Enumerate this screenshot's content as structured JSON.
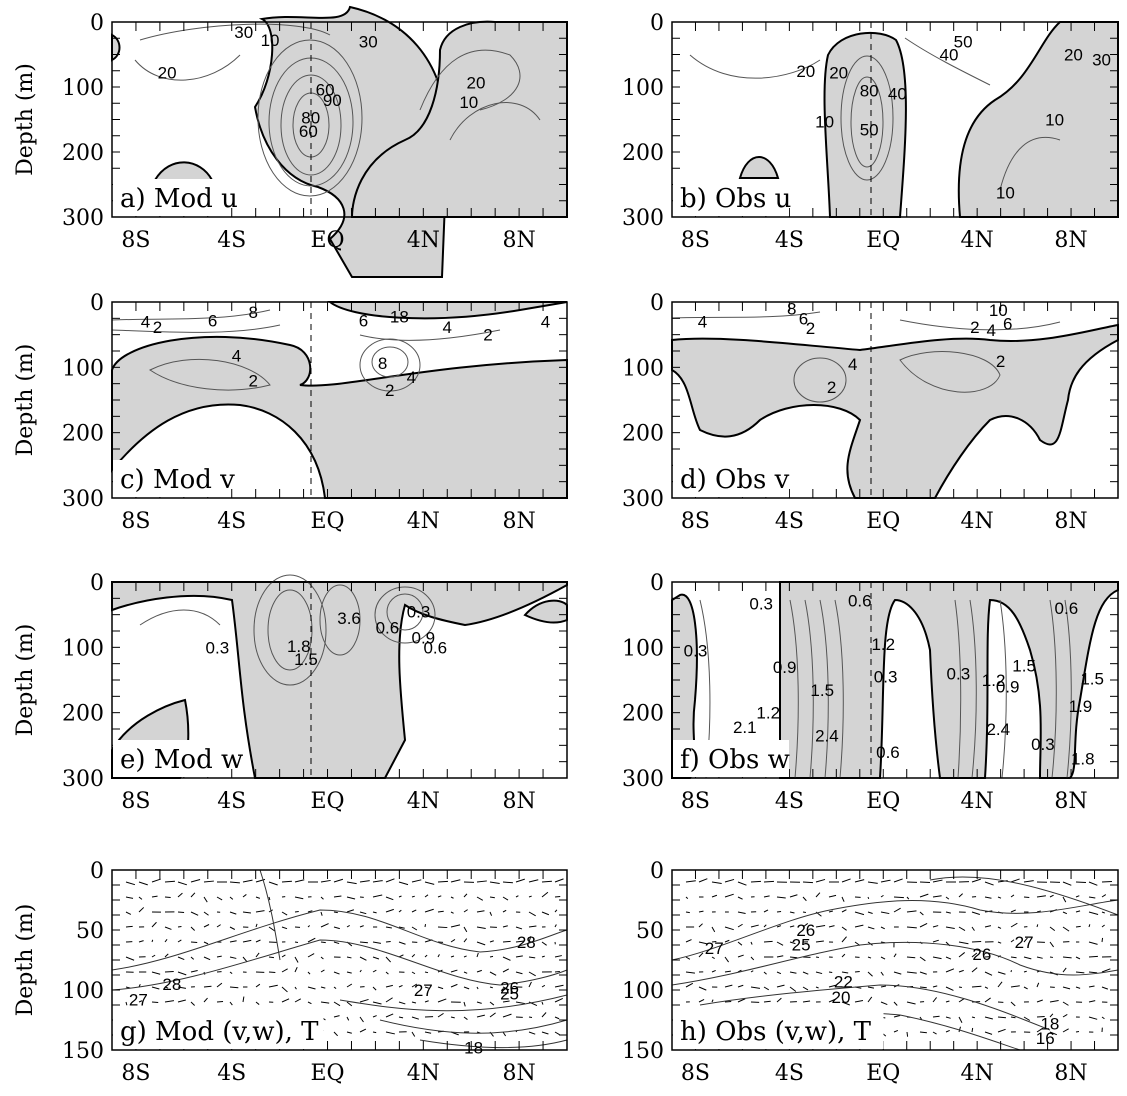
{
  "figure": {
    "y_axis_label": "Depth (m)",
    "x_ticks": [
      "8S",
      "4S",
      "EQ",
      "4N",
      "8N"
    ],
    "x_tick_values": [
      -8,
      -4,
      0,
      4,
      8
    ]
  },
  "chart_data": [
    {
      "id": "a",
      "title": "a) Mod u",
      "type": "contour",
      "xlabel": "",
      "ylabel": "Depth (m)",
      "xlim": [
        -9,
        10
      ],
      "ylim": [
        300,
        0
      ],
      "y_ticks": [
        0,
        100,
        200,
        300
      ],
      "shading": "positive values shaded grey",
      "contour_labels": [
        {
          "text": "30",
          "x": -3.5,
          "y": 15
        },
        {
          "text": "10",
          "x": -2.4,
          "y": 28
        },
        {
          "text": "30",
          "x": 1.7,
          "y": 30
        },
        {
          "text": "20",
          "x": -6.7,
          "y": 78
        },
        {
          "text": "60",
          "x": -0.1,
          "y": 104
        },
        {
          "text": "90",
          "x": 0.2,
          "y": 120
        },
        {
          "text": "80",
          "x": -0.7,
          "y": 147
        },
        {
          "text": "60",
          "x": -0.8,
          "y": 168
        },
        {
          "text": "20",
          "x": 6.2,
          "y": 93
        },
        {
          "text": "10",
          "x": 5.9,
          "y": 123
        }
      ]
    },
    {
      "id": "b",
      "title": "b) Obs u",
      "type": "contour",
      "xlabel": "",
      "ylabel": "Depth (m)",
      "xlim": [
        -9,
        10
      ],
      "ylim": [
        300,
        0
      ],
      "y_ticks": [
        0,
        100,
        200,
        300
      ],
      "shading": "positive values shaded grey",
      "contour_labels": [
        {
          "text": "50",
          "x": 3.4,
          "y": 30
        },
        {
          "text": "40",
          "x": 2.8,
          "y": 50
        },
        {
          "text": "20",
          "x": -3.3,
          "y": 75
        },
        {
          "text": "20",
          "x": 8.1,
          "y": 50
        },
        {
          "text": "30",
          "x": 9.3,
          "y": 58
        },
        {
          "text": "20",
          "x": -1.9,
          "y": 78
        },
        {
          "text": "80",
          "x": -0.6,
          "y": 105
        },
        {
          "text": "40",
          "x": 0.6,
          "y": 110
        },
        {
          "text": "10",
          "x": -2.5,
          "y": 153
        },
        {
          "text": "50",
          "x": -0.6,
          "y": 165
        },
        {
          "text": "10",
          "x": 7.3,
          "y": 150
        },
        {
          "text": "10",
          "x": 5.2,
          "y": 262
        }
      ]
    },
    {
      "id": "c",
      "title": "c) Mod v",
      "type": "contour",
      "xlabel": "",
      "ylabel": "Depth (m)",
      "xlim": [
        -9,
        10
      ],
      "ylim": [
        300,
        0
      ],
      "y_ticks": [
        0,
        100,
        200,
        300
      ],
      "shading": "positive values shaded grey",
      "contour_labels": [
        {
          "text": "8",
          "x": -3.1,
          "y": 15
        },
        {
          "text": "6",
          "x": -4.8,
          "y": 28
        },
        {
          "text": "4",
          "x": -7.6,
          "y": 30
        },
        {
          "text": "2",
          "x": -7.1,
          "y": 38
        },
        {
          "text": "4",
          "x": -3.8,
          "y": 82
        },
        {
          "text": "2",
          "x": -3.1,
          "y": 120
        },
        {
          "text": "6",
          "x": 1.5,
          "y": 28
        },
        {
          "text": "18",
          "x": 3.0,
          "y": 22
        },
        {
          "text": "4",
          "x": 5.0,
          "y": 38
        },
        {
          "text": "2",
          "x": 6.7,
          "y": 50
        },
        {
          "text": "4",
          "x": 9.1,
          "y": 30
        },
        {
          "text": "8",
          "x": 2.3,
          "y": 93
        },
        {
          "text": "4",
          "x": 3.5,
          "y": 115
        },
        {
          "text": "2",
          "x": 2.6,
          "y": 135
        }
      ]
    },
    {
      "id": "d",
      "title": "d) Obs v",
      "type": "contour",
      "xlabel": "",
      "ylabel": "Depth (m)",
      "xlim": [
        -9,
        10
      ],
      "ylim": [
        300,
        0
      ],
      "y_ticks": [
        0,
        100,
        200,
        300
      ],
      "shading": "positive values shaded grey",
      "contour_labels": [
        {
          "text": "4",
          "x": -7.7,
          "y": 30
        },
        {
          "text": "8",
          "x": -3.9,
          "y": 10
        },
        {
          "text": "6",
          "x": -3.4,
          "y": 25
        },
        {
          "text": "2",
          "x": -3.1,
          "y": 40
        },
        {
          "text": "4",
          "x": -1.3,
          "y": 95
        },
        {
          "text": "2",
          "x": -2.2,
          "y": 130
        },
        {
          "text": "10",
          "x": 4.9,
          "y": 12
        },
        {
          "text": "2",
          "x": 3.9,
          "y": 38
        },
        {
          "text": "4",
          "x": 4.6,
          "y": 43
        },
        {
          "text": "6",
          "x": 5.3,
          "y": 33
        },
        {
          "text": "2",
          "x": 5.0,
          "y": 90
        }
      ]
    },
    {
      "id": "e",
      "title": "e) Mod w",
      "type": "contour",
      "xlabel": "",
      "ylabel": "Depth (m)",
      "xlim": [
        -9,
        10
      ],
      "ylim": [
        300,
        0
      ],
      "y_ticks": [
        0,
        100,
        200,
        300
      ],
      "shading": "positive values shaded grey",
      "contour_labels": [
        {
          "text": "0.3",
          "x": -4.6,
          "y": 100
        },
        {
          "text": "1.8",
          "x": -1.2,
          "y": 98
        },
        {
          "text": "1.5",
          "x": -0.9,
          "y": 118
        },
        {
          "text": "3.6",
          "x": 0.9,
          "y": 55
        },
        {
          "text": "0.6",
          "x": 2.5,
          "y": 70
        },
        {
          "text": "0.3",
          "x": 3.8,
          "y": 45
        },
        {
          "text": "0.9",
          "x": 4.0,
          "y": 85
        },
        {
          "text": "0.6",
          "x": 4.5,
          "y": 100
        }
      ]
    },
    {
      "id": "f",
      "title": "f) Obs w",
      "type": "contour",
      "xlabel": "",
      "ylabel": "Depth (m)",
      "xlim": [
        -9,
        10
      ],
      "ylim": [
        300,
        0
      ],
      "y_ticks": [
        0,
        100,
        200,
        300
      ],
      "shading": "positive values shaded grey",
      "contour_labels": [
        {
          "text": "0.3",
          "x": -5.2,
          "y": 33
        },
        {
          "text": "0.6",
          "x": -1.0,
          "y": 28
        },
        {
          "text": "1.2",
          "x": 0.0,
          "y": 95
        },
        {
          "text": "0.3",
          "x": -8.0,
          "y": 105
        },
        {
          "text": "0.9",
          "x": -4.2,
          "y": 130
        },
        {
          "text": "1.5",
          "x": -2.6,
          "y": 165
        },
        {
          "text": "1.2",
          "x": -4.9,
          "y": 200
        },
        {
          "text": "2.1",
          "x": -5.9,
          "y": 222
        },
        {
          "text": "2.4",
          "x": -2.4,
          "y": 235
        },
        {
          "text": "0.3",
          "x": 0.1,
          "y": 145
        },
        {
          "text": "0.6",
          "x": 0.2,
          "y": 260
        },
        {
          "text": "0.3",
          "x": 3.2,
          "y": 140
        },
        {
          "text": "0.9",
          "x": 5.3,
          "y": 160
        },
        {
          "text": "1.2",
          "x": 4.7,
          "y": 150
        },
        {
          "text": "1.5",
          "x": 6.0,
          "y": 128
        },
        {
          "text": "0.6",
          "x": 7.8,
          "y": 40
        },
        {
          "text": "1.9",
          "x": 8.4,
          "y": 190
        },
        {
          "text": "1.5",
          "x": 8.9,
          "y": 148
        },
        {
          "text": "1.8",
          "x": 8.5,
          "y": 270
        },
        {
          "text": "2.4",
          "x": 4.9,
          "y": 225
        },
        {
          "text": "0.3",
          "x": 6.8,
          "y": 248
        }
      ]
    },
    {
      "id": "g",
      "title": "g) Mod (v,w), T",
      "type": "vector",
      "xlabel": "",
      "ylabel": "Depth (m)",
      "xlim": [
        -9,
        10
      ],
      "ylim": [
        150,
        0
      ],
      "y_ticks": [
        0,
        50,
        100,
        150
      ],
      "isotherm_labels": [
        {
          "text": "28",
          "x": 8.3,
          "y": 60
        },
        {
          "text": "28",
          "x": -6.5,
          "y": 95
        },
        {
          "text": "27",
          "x": -7.9,
          "y": 108
        },
        {
          "text": "27",
          "x": 4.0,
          "y": 100
        },
        {
          "text": "26",
          "x": 7.6,
          "y": 98
        },
        {
          "text": "25",
          "x": 7.6,
          "y": 103
        },
        {
          "text": "18",
          "x": 6.1,
          "y": 148
        }
      ]
    },
    {
      "id": "h",
      "title": "h) Obs (v,w), T",
      "type": "vector",
      "xlabel": "",
      "ylabel": "Depth (m)",
      "xlim": [
        -9,
        10
      ],
      "ylim": [
        150,
        0
      ],
      "y_ticks": [
        0,
        50,
        100,
        150
      ],
      "isotherm_labels": [
        {
          "text": "26",
          "x": -3.3,
          "y": 50
        },
        {
          "text": "25",
          "x": -3.5,
          "y": 62
        },
        {
          "text": "27",
          "x": -7.2,
          "y": 65
        },
        {
          "text": "22",
          "x": -1.7,
          "y": 93
        },
        {
          "text": "20",
          "x": -1.8,
          "y": 106
        },
        {
          "text": "26",
          "x": 4.2,
          "y": 70
        },
        {
          "text": "27",
          "x": 6.0,
          "y": 60
        },
        {
          "text": "18",
          "x": 7.1,
          "y": 128
        },
        {
          "text": "16",
          "x": 6.9,
          "y": 140
        }
      ]
    }
  ]
}
